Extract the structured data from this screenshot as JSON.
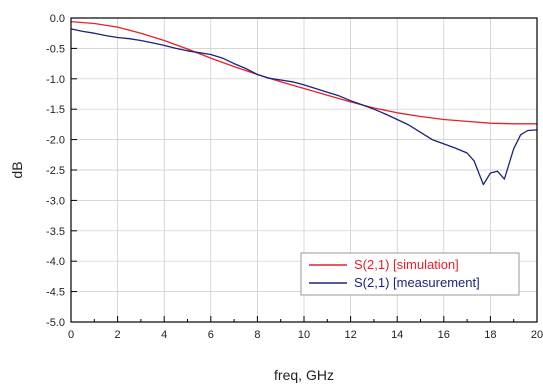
{
  "chart_data": {
    "type": "line",
    "title": "",
    "xlabel": "freq, GHz",
    "ylabel": "dB",
    "xlim": [
      0,
      20
    ],
    "ylim": [
      -5.0,
      0.0
    ],
    "x_ticks": [
      "0",
      "2",
      "4",
      "6",
      "8",
      "10",
      "12",
      "14",
      "16",
      "18",
      "20"
    ],
    "y_ticks": [
      "0.0",
      "-0.5",
      "-1.0",
      "-1.5",
      "-2.0",
      "-2.5",
      "-3.0",
      "-3.5",
      "-4.0",
      "-4.5",
      "-5.0"
    ],
    "grid": true,
    "legend_position": "bottom-right",
    "series": [
      {
        "name": "S(2,1) [simulation]",
        "color": "#e8202a",
        "x": [
          0,
          1,
          2,
          3,
          4,
          5,
          6,
          7,
          8,
          9,
          10,
          11,
          12,
          13,
          14,
          15,
          16,
          17,
          18,
          19,
          20
        ],
        "y": [
          -0.06,
          -0.09,
          -0.15,
          -0.25,
          -0.37,
          -0.51,
          -0.66,
          -0.8,
          -0.93,
          -1.05,
          -1.16,
          -1.27,
          -1.38,
          -1.48,
          -1.56,
          -1.62,
          -1.67,
          -1.7,
          -1.73,
          -1.74,
          -1.74
        ]
      },
      {
        "name": "S(2,1) [measurement]",
        "color": "#1a237e",
        "x": [
          0,
          0.5,
          1,
          1.5,
          2,
          2.5,
          3,
          3.5,
          4,
          4.5,
          5,
          5.5,
          6,
          6.5,
          7,
          7.5,
          8,
          8.5,
          9,
          9.5,
          10,
          10.5,
          11,
          11.5,
          12,
          12.5,
          13,
          13.5,
          14,
          14.5,
          15,
          15.5,
          16,
          16.5,
          17,
          17.3,
          17.5,
          17.7,
          18,
          18.3,
          18.6,
          19,
          19.3,
          19.6,
          20
        ],
        "y": [
          -0.18,
          -0.22,
          -0.25,
          -0.29,
          -0.32,
          -0.34,
          -0.37,
          -0.41,
          -0.45,
          -0.5,
          -0.54,
          -0.57,
          -0.6,
          -0.66,
          -0.75,
          -0.83,
          -0.93,
          -0.99,
          -1.02,
          -1.05,
          -1.1,
          -1.16,
          -1.22,
          -1.28,
          -1.36,
          -1.43,
          -1.5,
          -1.58,
          -1.67,
          -1.76,
          -1.88,
          -2.0,
          -2.07,
          -2.14,
          -2.22,
          -2.35,
          -2.55,
          -2.74,
          -2.55,
          -2.52,
          -2.65,
          -2.15,
          -1.92,
          -1.85,
          -1.84
        ]
      }
    ]
  }
}
